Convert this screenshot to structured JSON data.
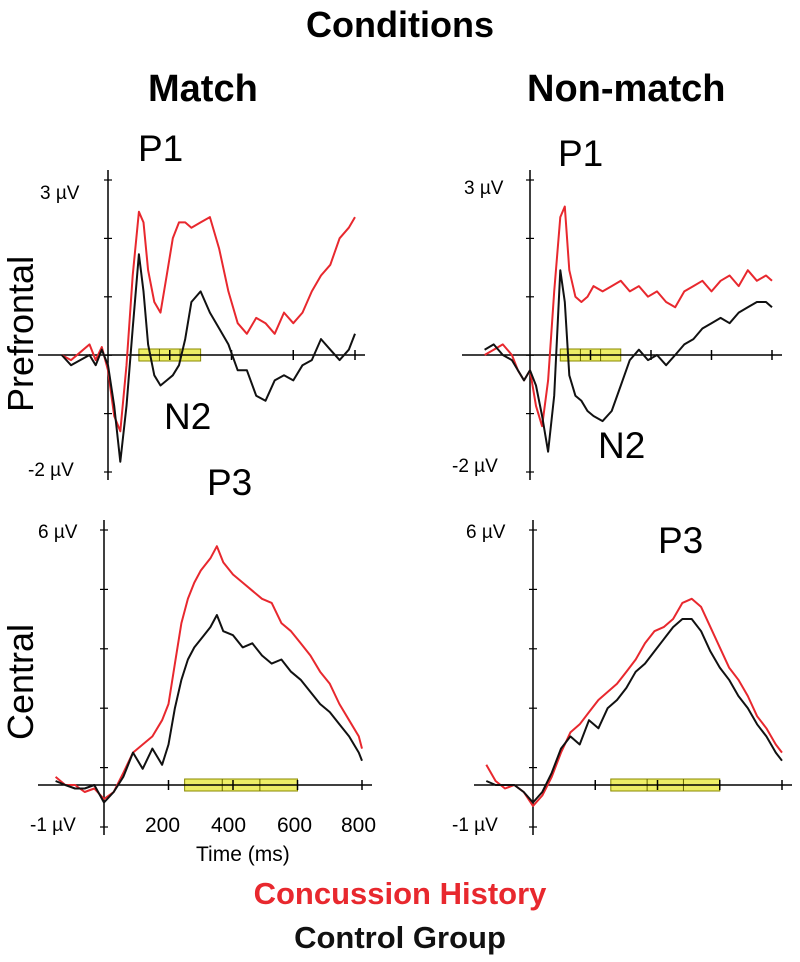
{
  "figure": {
    "title": "Conditions",
    "columns": [
      "Match",
      "Non-match"
    ],
    "rows": [
      "Prefrontal",
      "Central"
    ],
    "legend": [
      {
        "label": "Concussion History",
        "color": "#e8282e"
      },
      {
        "label": "Control Group",
        "color": "#111111"
      }
    ],
    "window_color": "#eeee66"
  },
  "chart_data": [
    {
      "type": "line",
      "id": "match-prefrontal",
      "ylim": [
        -2.3,
        3.3
      ],
      "xlim": [
        -150,
        850
      ],
      "y_top_label": "3 µV",
      "y_bottom_label": "-2 µV",
      "peak_labels": [
        "P1",
        "N2"
      ],
      "analysis_window": [
        100,
        300
      ],
      "x_ticks": [
        200,
        400,
        600,
        800
      ],
      "series": [
        {
          "name": "Concussion History",
          "color": "#e8282e",
          "x": [
            -150,
            -120,
            -90,
            -60,
            -40,
            -20,
            0,
            20,
            40,
            60,
            80,
            100,
            115,
            130,
            150,
            170,
            190,
            210,
            230,
            250,
            270,
            300,
            330,
            360,
            390,
            420,
            450,
            480,
            510,
            540,
            570,
            600,
            630,
            660,
            690,
            720,
            750,
            780,
            800
          ],
          "y": [
            0,
            -0.1,
            0.05,
            0.2,
            -0.1,
            0.15,
            -0.3,
            -1.2,
            -1.5,
            -0.2,
            1.5,
            2.7,
            2.5,
            1.6,
            1.0,
            0.8,
            1.5,
            2.2,
            2.5,
            2.5,
            2.4,
            2.5,
            2.6,
            2.0,
            1.2,
            0.6,
            0.4,
            0.7,
            0.6,
            0.4,
            0.8,
            0.6,
            0.8,
            1.2,
            1.5,
            1.7,
            2.2,
            2.4,
            2.6
          ]
        },
        {
          "name": "Control Group",
          "color": "#111111",
          "x": [
            -150,
            -120,
            -90,
            -60,
            -40,
            -20,
            0,
            20,
            40,
            60,
            80,
            100,
            115,
            130,
            150,
            170,
            190,
            210,
            230,
            250,
            270,
            300,
            330,
            360,
            390,
            420,
            450,
            480,
            510,
            540,
            570,
            600,
            630,
            660,
            690,
            720,
            750,
            780,
            800
          ],
          "y": [
            0,
            -0.2,
            -0.1,
            0,
            -0.2,
            0.1,
            -0.2,
            -1.0,
            -2.1,
            -1.0,
            0.5,
            1.9,
            1.2,
            0.2,
            -0.4,
            -0.6,
            -0.5,
            -0.4,
            -0.2,
            0.3,
            1.0,
            1.2,
            0.8,
            0.5,
            0.2,
            -0.3,
            -0.3,
            -0.8,
            -0.9,
            -0.5,
            -0.4,
            -0.5,
            -0.2,
            -0.1,
            0.3,
            0.1,
            -0.1,
            0.1,
            0.4
          ]
        }
      ]
    },
    {
      "type": "line",
      "id": "nonmatch-prefrontal",
      "ylim": [
        -2.3,
        3.3
      ],
      "xlim": [
        -150,
        850
      ],
      "y_top_label": "3 µV",
      "y_bottom_label": "-2 µV",
      "peak_labels": [
        "P1",
        "N2"
      ],
      "analysis_window": [
        100,
        300
      ],
      "x_ticks": [
        200,
        400,
        600,
        800
      ],
      "series": [
        {
          "name": "Concussion History",
          "color": "#e8282e",
          "x": [
            -150,
            -120,
            -90,
            -60,
            -40,
            -20,
            0,
            20,
            40,
            60,
            80,
            100,
            115,
            130,
            150,
            170,
            190,
            210,
            240,
            270,
            300,
            330,
            360,
            390,
            420,
            450,
            480,
            510,
            540,
            570,
            600,
            630,
            660,
            690,
            720,
            750,
            780,
            800
          ],
          "y": [
            0,
            0.1,
            0.2,
            0,
            -0.3,
            -0.5,
            -0.3,
            -1.0,
            -1.4,
            -0.5,
            1.2,
            2.6,
            2.8,
            1.6,
            1.1,
            1.0,
            1.1,
            1.3,
            1.2,
            1.3,
            1.4,
            1.2,
            1.3,
            1.1,
            1.2,
            1.0,
            0.9,
            1.2,
            1.3,
            1.4,
            1.2,
            1.4,
            1.5,
            1.3,
            1.6,
            1.4,
            1.5,
            1.4
          ]
        },
        {
          "name": "Control Group",
          "color": "#111111",
          "x": [
            -150,
            -120,
            -90,
            -60,
            -40,
            -20,
            0,
            20,
            40,
            60,
            80,
            100,
            115,
            130,
            150,
            170,
            190,
            210,
            240,
            270,
            300,
            330,
            360,
            390,
            420,
            450,
            480,
            510,
            540,
            570,
            600,
            630,
            660,
            690,
            720,
            750,
            780,
            800
          ],
          "y": [
            0.1,
            0.2,
            0,
            -0.1,
            -0.3,
            -0.5,
            -0.3,
            -0.6,
            -1.2,
            -1.9,
            -0.8,
            1.6,
            1.0,
            -0.4,
            -0.8,
            -0.9,
            -1.1,
            -1.2,
            -1.3,
            -1.1,
            -0.6,
            -0.1,
            0.1,
            -0.1,
            0,
            -0.2,
            0,
            0.2,
            0.3,
            0.5,
            0.6,
            0.7,
            0.6,
            0.8,
            0.9,
            1.0,
            1.0,
            0.9
          ]
        }
      ]
    },
    {
      "type": "line",
      "id": "match-central",
      "ylim": [
        -1.2,
        6.3
      ],
      "xlim": [
        -150,
        850
      ],
      "y_top_label": "6 µV",
      "y_bottom_label": "-1 µV",
      "peak_labels": [
        "P3"
      ],
      "analysis_window": [
        250,
        600
      ],
      "x_ticks": [
        200,
        400,
        600,
        800
      ],
      "x_tick_labels": [
        "200",
        "400",
        "600",
        "800"
      ],
      "xlabel": "Time (ms)",
      "series": [
        {
          "name": "Concussion History",
          "color": "#e8282e",
          "x": [
            -150,
            -120,
            -90,
            -60,
            -30,
            0,
            30,
            60,
            90,
            120,
            150,
            180,
            200,
            220,
            240,
            260,
            280,
            300,
            330,
            350,
            370,
            400,
            430,
            460,
            490,
            520,
            550,
            580,
            610,
            640,
            670,
            700,
            730,
            760,
            790,
            800
          ],
          "y": [
            0.2,
            0,
            0,
            -0.2,
            -0.1,
            -0.4,
            -0.2,
            0.3,
            0.8,
            1.0,
            1.2,
            1.6,
            2.0,
            3.0,
            4.0,
            4.6,
            5.0,
            5.3,
            5.6,
            5.9,
            5.5,
            5.2,
            5.0,
            4.8,
            4.6,
            4.5,
            4.0,
            3.8,
            3.5,
            3.2,
            2.8,
            2.5,
            2.0,
            1.6,
            1.2,
            0.9
          ]
        },
        {
          "name": "Control Group",
          "color": "#111111",
          "x": [
            -150,
            -120,
            -90,
            -60,
            -30,
            0,
            30,
            60,
            90,
            120,
            150,
            180,
            200,
            220,
            240,
            260,
            280,
            300,
            330,
            350,
            370,
            400,
            430,
            460,
            490,
            520,
            550,
            580,
            610,
            640,
            670,
            700,
            730,
            760,
            790,
            800
          ],
          "y": [
            0.1,
            0,
            -0.1,
            -0.1,
            0,
            -0.5,
            -0.2,
            0.2,
            0.8,
            0.4,
            0.9,
            0.5,
            1.0,
            1.9,
            2.6,
            3.1,
            3.4,
            3.6,
            3.9,
            4.2,
            3.8,
            3.7,
            3.4,
            3.5,
            3.2,
            3.0,
            3.1,
            2.8,
            2.6,
            2.3,
            2.0,
            1.8,
            1.5,
            1.2,
            0.8,
            0.6
          ]
        }
      ]
    },
    {
      "type": "line",
      "id": "nonmatch-central",
      "ylim": [
        -1.2,
        6.3
      ],
      "xlim": [
        -150,
        850
      ],
      "y_top_label": "6 µV",
      "y_bottom_label": "-1 µV",
      "peak_labels": [
        "P3"
      ],
      "analysis_window": [
        250,
        600
      ],
      "x_ticks": [
        200,
        400,
        600,
        800
      ],
      "series": [
        {
          "name": "Concussion History",
          "color": "#e8282e",
          "x": [
            -150,
            -120,
            -90,
            -60,
            -30,
            0,
            30,
            60,
            90,
            120,
            150,
            180,
            210,
            240,
            270,
            300,
            330,
            360,
            390,
            420,
            450,
            480,
            510,
            540,
            570,
            600,
            630,
            660,
            690,
            720,
            750,
            780,
            800
          ],
          "y": [
            0.5,
            0.1,
            -0.1,
            0,
            -0.2,
            -0.6,
            -0.3,
            0.2,
            0.8,
            1.3,
            1.5,
            1.8,
            2.1,
            2.3,
            2.5,
            2.8,
            3.1,
            3.5,
            3.8,
            3.9,
            4.1,
            4.5,
            4.6,
            4.4,
            3.9,
            3.4,
            2.9,
            2.6,
            2.2,
            1.7,
            1.4,
            1.0,
            0.8
          ]
        },
        {
          "name": "Control Group",
          "color": "#111111",
          "x": [
            -150,
            -120,
            -90,
            -60,
            -30,
            0,
            30,
            60,
            90,
            120,
            150,
            180,
            210,
            240,
            270,
            300,
            330,
            360,
            390,
            420,
            450,
            480,
            510,
            540,
            570,
            600,
            630,
            660,
            690,
            720,
            750,
            780,
            800
          ],
          "y": [
            0.1,
            0,
            0,
            0,
            -0.2,
            -0.5,
            -0.2,
            0.3,
            0.9,
            1.2,
            1.0,
            1.6,
            1.4,
            1.9,
            2.1,
            2.4,
            2.8,
            3.0,
            3.3,
            3.6,
            3.9,
            4.1,
            4.1,
            3.8,
            3.3,
            2.9,
            2.6,
            2.2,
            1.9,
            1.5,
            1.2,
            0.8,
            0.6
          ]
        }
      ]
    }
  ]
}
